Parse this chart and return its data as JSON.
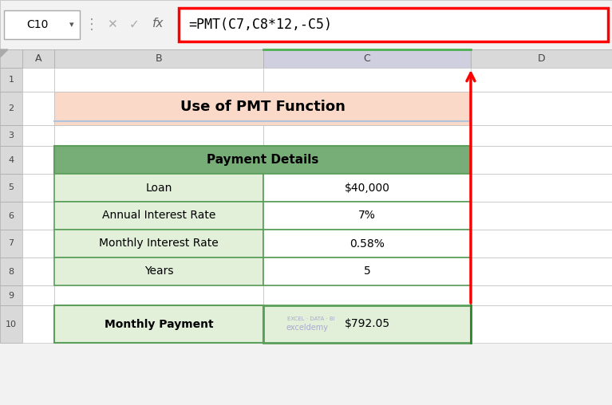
{
  "title": "Use of PMT Function",
  "title_bg": "#FADADD",
  "title_bg2": "#FAD9C8",
  "title_underline_color": "#B0C4DE",
  "header_text": "Payment Details",
  "header_bg": "#77AD77",
  "row_bg_light": "#E2F0DA",
  "table_border_color": "#5A9E5A",
  "rows": [
    [
      "Loan",
      "$40,000"
    ],
    [
      "Annual Interest Rate",
      "7%"
    ],
    [
      "Monthly Interest Rate",
      "0.58%"
    ],
    [
      "Years",
      "5"
    ]
  ],
  "footer_label": "Monthly Payment",
  "footer_value": "$792.05",
  "footer_bg": "#E2F0DA",
  "footer_border": "#5A9E5A",
  "formula_box_text": "=PMT(C7,C8*12,-C5)",
  "formula_box_border": "#FF0000",
  "formula_box_bg": "#FFFFFF",
  "cell_ref": "C10",
  "arrow_color": "#FF0000",
  "spreadsheet_bg": "#F2F2F2",
  "cell_header_bg": "#D9D9D9",
  "formula_bar_bg": "#F2F2F2",
  "white": "#FFFFFF",
  "cell_border": "#C0C0C0",
  "col_c_header_bg": "#C8C8C8",
  "col_c_header_border": "#4CAF50"
}
